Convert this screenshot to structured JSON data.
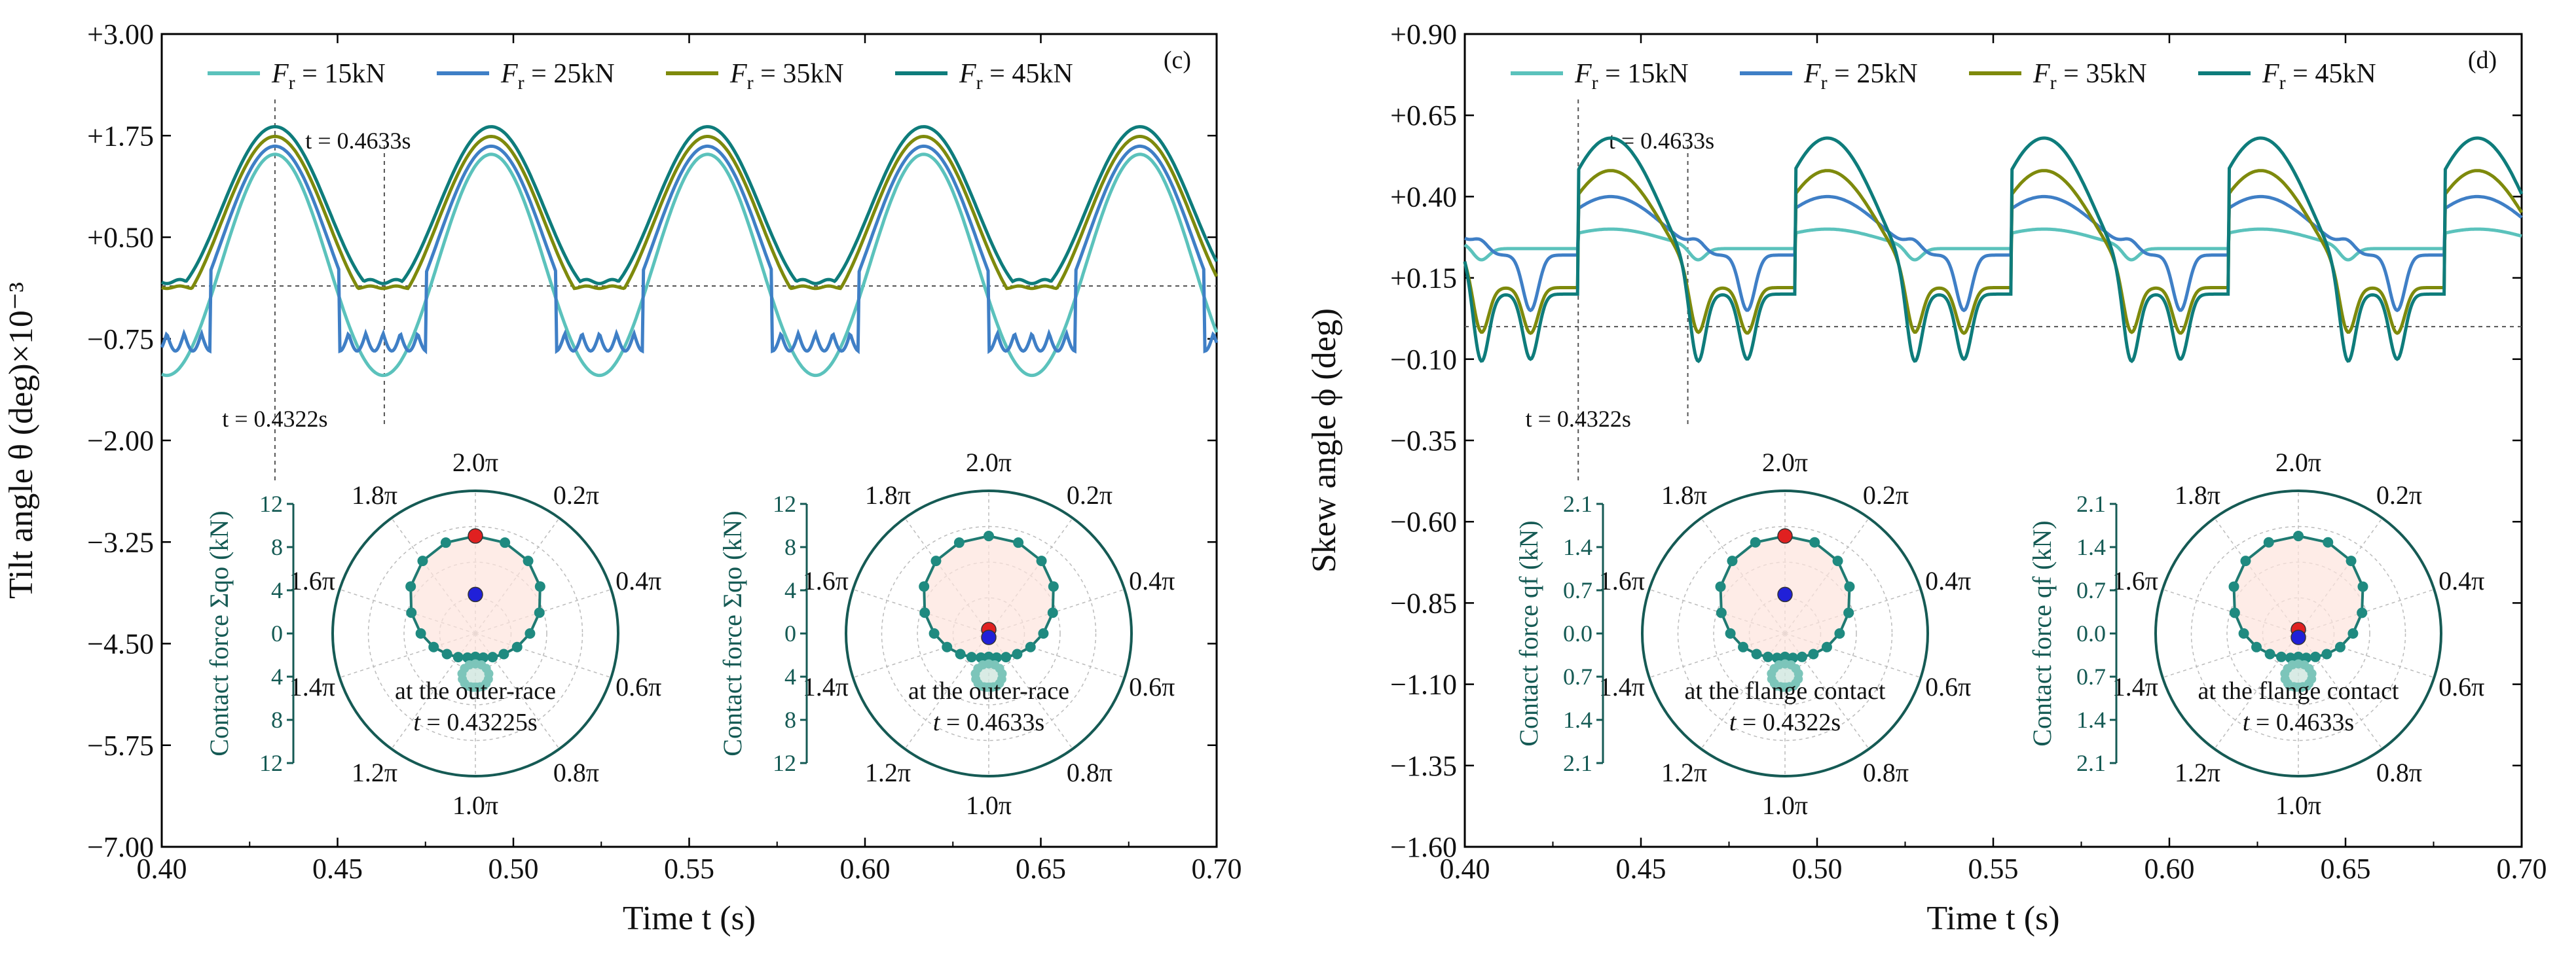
{
  "chart_data": [
    {
      "panel": "(c)",
      "type": "line",
      "ylabel": "Tilt angle θ (deg)×10⁻³",
      "xlabel": "Time t (s)",
      "xlim": [
        0.4,
        0.7
      ],
      "ylim": [
        -7.0,
        3.0
      ],
      "xticks": [
        "0.40",
        "0.45",
        "0.50",
        "0.55",
        "0.60",
        "0.65",
        "0.70"
      ],
      "yticks": [
        "+3.00",
        "+1.75",
        "+0.50",
        "−0.75",
        "−2.00",
        "−3.25",
        "−4.50",
        "−5.75",
        "−7.00"
      ],
      "legend": [
        "Fr = 15kN",
        "Fr = 25kN",
        "Fr = 35kN",
        "Fr = 45kN"
      ],
      "legend_placement": "top",
      "colors": [
        "#5BC2BC",
        "#3F7FC6",
        "#7E8A0C",
        "#0E7C7B"
      ],
      "annotations": {
        "t1_label": "t = 0.4322s",
        "t1": 0.4322,
        "t2_label": "t = 0.4633s",
        "t2": 0.4633,
        "ref_level": -0.1
      },
      "series_model": {
        "period": 0.0615,
        "peak_time": 0.4322,
        "peaks": [
          1.52,
          1.62,
          1.74,
          1.86
        ],
        "valleys": [
          -1.2,
          -0.75,
          -0.4,
          -0.2
        ],
        "plateau": [
          null,
          -0.55,
          -0.1,
          -0.02
        ],
        "ripple": [
          0.0,
          0.12,
          0.03,
          0.05
        ]
      },
      "insets": [
        {
          "rlabel": "Contact force Σqo (kN)",
          "rticks": [
            "12",
            "8",
            "4",
            "0",
            "4",
            "8",
            "12"
          ],
          "note": "at the outer-race",
          "time": "t = 0.43225s",
          "angles": [
            "2.0π",
            "0.2π",
            "0.4π",
            "0.6π",
            "0.8π",
            "1.0π",
            "1.2π",
            "1.4π",
            "1.6π",
            "1.8π"
          ],
          "outer_ring_kN": [
            10.0,
            9.8,
            9.2,
            8.2,
            6.9,
            5.6,
            4.5,
            3.6,
            3.0,
            2.6,
            2.4,
            2.6,
            3.0,
            3.6,
            4.5,
            5.6,
            6.9,
            8.2,
            9.2,
            9.8
          ],
          "inner_ring_kN": [
            2.0,
            2.0,
            1.9,
            1.7,
            1.4,
            1.1,
            0.9,
            0.6,
            0.5,
            0.4,
            0.4,
            0.4,
            0.5,
            0.6,
            0.9,
            1.1,
            1.4,
            1.7,
            1.9,
            2.0
          ],
          "red_point": {
            "angle": 0.0,
            "value": 10.0
          },
          "blue_point": {
            "angle": 0.0,
            "value": 4.0
          }
        },
        {
          "rlabel": "Contact force Σqo (kN)",
          "rticks": [
            "12",
            "8",
            "4",
            "0",
            "4",
            "8",
            "12"
          ],
          "note": "at the outer-race",
          "time": "t = 0.4633s",
          "angles": [
            "2.0π",
            "0.2π",
            "0.4π",
            "0.6π",
            "0.8π",
            "1.0π",
            "1.2π",
            "1.4π",
            "1.6π",
            "1.8π"
          ],
          "outer_ring_kN": [
            10.0,
            9.8,
            9.2,
            8.2,
            6.9,
            5.6,
            4.5,
            3.6,
            3.0,
            2.6,
            2.4,
            2.6,
            3.0,
            3.6,
            4.5,
            5.6,
            6.9,
            8.2,
            9.2,
            9.8
          ],
          "inner_ring_kN": [
            2.0,
            2.0,
            1.9,
            1.7,
            1.4,
            1.1,
            0.9,
            0.6,
            0.5,
            0.4,
            0.4,
            0.4,
            0.5,
            0.6,
            0.9,
            1.1,
            1.4,
            1.7,
            1.9,
            2.0
          ],
          "red_point": {
            "angle": 0.0,
            "value": 0.4
          },
          "blue_point": {
            "angle": 1.0,
            "value": 0.4
          }
        }
      ]
    },
    {
      "panel": "(d)",
      "type": "line",
      "ylabel": "Skew angle ϕ (deg)",
      "xlabel": "Time t (s)",
      "xlim": [
        0.4,
        0.7
      ],
      "ylim": [
        -1.6,
        0.9
      ],
      "xticks": [
        "0.40",
        "0.45",
        "0.50",
        "0.55",
        "0.60",
        "0.65",
        "0.70"
      ],
      "yticks": [
        "+0.90",
        "+0.65",
        "+0.40",
        "+0.15",
        "−0.10",
        "−0.35",
        "−0.60",
        "−0.85",
        "−1.10",
        "−1.35",
        "−1.60"
      ],
      "legend": [
        "Fr = 15kN",
        "Fr = 25kN",
        "Fr = 35kN",
        "Fr = 45kN"
      ],
      "legend_placement": "top",
      "colors": [
        "#5BC2BC",
        "#3F7FC6",
        "#7E8A0C",
        "#0E7C7B"
      ],
      "annotations": {
        "t1_label": "t = 0.4322s",
        "t1": 0.4322,
        "t2_label": "t = 0.4633s",
        "t2": 0.4633,
        "ref_level": 0.0
      },
      "series_model": {
        "period": 0.0615,
        "peak_time": 0.4322,
        "peaks": [
          0.3,
          0.4,
          0.48,
          0.58
        ],
        "baseline": [
          0.24,
          0.22,
          0.12,
          0.1
        ],
        "dips": [
          0.2,
          0.25,
          -0.05,
          -0.15
        ],
        "dips2": [
          0.24,
          0.05,
          -0.02,
          -0.1
        ]
      },
      "insets": [
        {
          "rlabel": "Contact force qf (kN)",
          "rticks": [
            "2.1",
            "1.4",
            "0.7",
            "0.0",
            "0.7",
            "1.4",
            "2.1"
          ],
          "note": "at the flange contact",
          "time": "t = 0.4322s",
          "angles": [
            "2.0π",
            "0.2π",
            "0.4π",
            "0.6π",
            "0.8π",
            "1.0π",
            "1.2π",
            "1.4π",
            "1.6π",
            "1.8π"
          ],
          "outer_ring_kN": [
            1.75,
            1.72,
            1.61,
            1.43,
            1.2,
            0.98,
            0.79,
            0.63,
            0.52,
            0.46,
            0.42,
            0.46,
            0.52,
            0.63,
            0.79,
            0.98,
            1.2,
            1.43,
            1.61,
            1.72
          ],
          "inner_ring_kN": [
            0.35,
            0.35,
            0.33,
            0.3,
            0.25,
            0.19,
            0.16,
            0.1,
            0.09,
            0.07,
            0.07,
            0.07,
            0.09,
            0.1,
            0.16,
            0.19,
            0.25,
            0.3,
            0.33,
            0.35
          ],
          "red_point": {
            "angle": 0.0,
            "value": 1.75
          },
          "blue_point": {
            "angle": 0.0,
            "value": 0.7
          }
        },
        {
          "rlabel": "Contact force qf (kN)",
          "rticks": [
            "2.1",
            "1.4",
            "0.7",
            "0.0",
            "0.7",
            "1.4",
            "2.1"
          ],
          "note": "at the flange contact",
          "time": "t = 0.4633s",
          "angles": [
            "2.0π",
            "0.2π",
            "0.4π",
            "0.6π",
            "0.8π",
            "1.0π",
            "1.2π",
            "1.4π",
            "1.6π",
            "1.8π"
          ],
          "outer_ring_kN": [
            1.75,
            1.72,
            1.61,
            1.43,
            1.2,
            0.98,
            0.79,
            0.63,
            0.52,
            0.46,
            0.42,
            0.46,
            0.52,
            0.63,
            0.79,
            0.98,
            1.2,
            1.43,
            1.61,
            1.72
          ],
          "inner_ring_kN": [
            0.35,
            0.35,
            0.33,
            0.3,
            0.25,
            0.19,
            0.16,
            0.1,
            0.09,
            0.07,
            0.07,
            0.07,
            0.09,
            0.1,
            0.16,
            0.19,
            0.25,
            0.3,
            0.33,
            0.35
          ],
          "red_point": {
            "angle": 0.0,
            "value": 0.07
          },
          "blue_point": {
            "angle": 1.0,
            "value": 0.07
          }
        }
      ]
    }
  ]
}
